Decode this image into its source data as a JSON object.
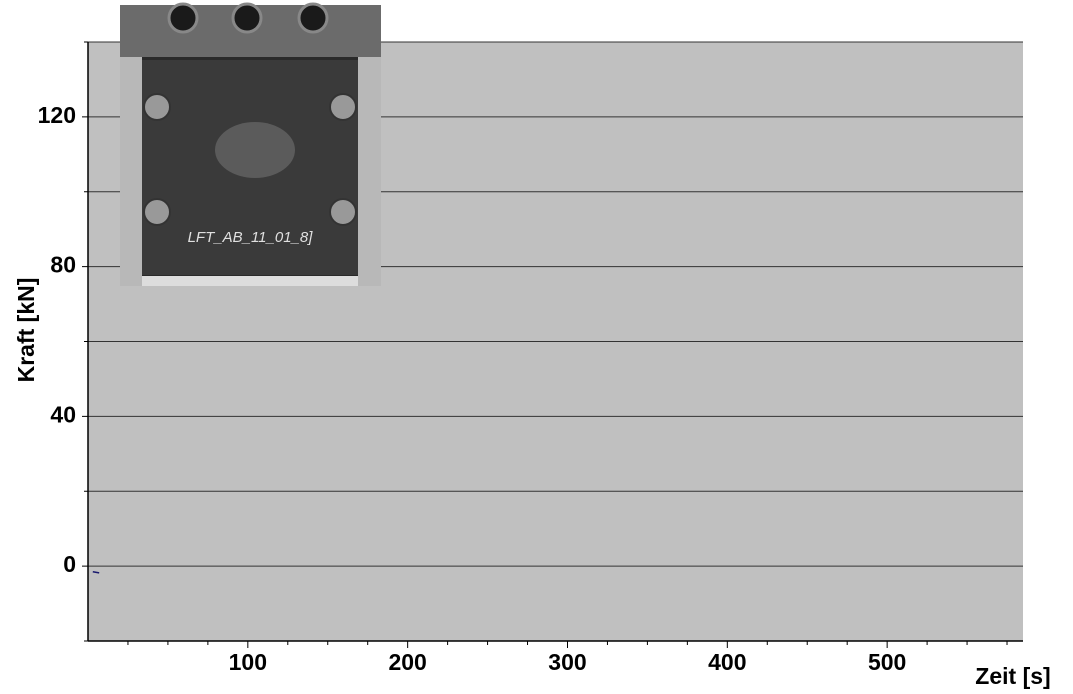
{
  "chart_data": {
    "type": "line",
    "xlabel": "Zeit [s]",
    "ylabel": "Kraft [kN]",
    "inset_text": "LFT_AB_11_01_8]",
    "x": [
      3,
      7
    ],
    "series": [
      {
        "color": "#1a1a6e",
        "values": [
          -1.5,
          -1.8
        ]
      }
    ],
    "xlim": [
      0,
      585
    ],
    "ylim": [
      -20,
      140
    ],
    "xticks": [
      100,
      200,
      300,
      400,
      500
    ],
    "x_minor_ticks": [
      25,
      50,
      75,
      125,
      150,
      175,
      225,
      250,
      275,
      325,
      350,
      375,
      425,
      450,
      475,
      525,
      550,
      575
    ],
    "yticks": [
      0,
      40,
      80,
      120
    ],
    "y_minor_ticks": [
      -20,
      20,
      60,
      100,
      140
    ],
    "grid": true,
    "background": "#c0c0c0"
  }
}
